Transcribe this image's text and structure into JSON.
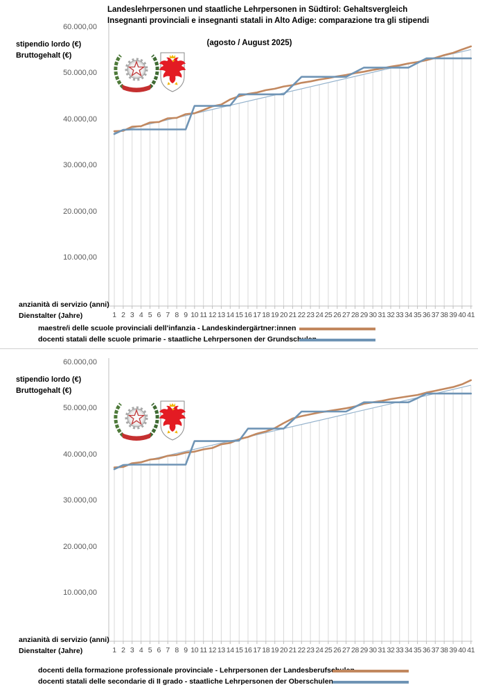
{
  "title": {
    "line1": "Landeslehrpersonen und staatliche Lehrpersonen in Südtirol: Gehaltsvergleich",
    "line2": "Insegnanti provinciali e insegnanti statali in Alto Adige: comparazione tra gli stipendi",
    "line3": "(agosto / August 2025)"
  },
  "emblems": [
    {
      "name": "italy-emblem",
      "description": "Emblem of the Italian Republic"
    },
    {
      "name": "south-tyrol-emblem",
      "description": "Coat of arms of South Tyrol (red eagle)"
    }
  ],
  "colors": {
    "provincial_line": "#c2885f",
    "state_line": "#6f94b5",
    "trend_line": "#94b2cc",
    "dropline": "#d9d9d9",
    "axis": "#bfbfbf"
  },
  "charts": [
    {
      "y_axis_title": [
        "stipendio lordo (€)",
        "Bruttogehalt (€)"
      ],
      "x_axis_title": [
        "anzianità di servizio (anni)",
        "Dienstalter (Jahre)"
      ],
      "legend": [
        {
          "label": "maestre/i delle scuole provinciali dell'infanzia - Landeskindergärtner:innen",
          "color": "#c2885f"
        },
        {
          "label": "docenti statali delle scuole primarie - staatliche Lehrpersonen der Grundschulen",
          "color": "#6f94b5"
        }
      ],
      "chart_data": {
        "type": "line",
        "ylim": [
          0,
          60000
        ],
        "yticks": [
          {
            "value": 60000,
            "label": "60.000,00"
          },
          {
            "value": 50000,
            "label": "50.000,00"
          },
          {
            "value": 40000,
            "label": "40.000,00"
          },
          {
            "value": 30000,
            "label": "30.000,00"
          },
          {
            "value": 20000,
            "label": "20.000,00"
          },
          {
            "value": 10000,
            "label": "10.000,00"
          }
        ],
        "x": [
          "1",
          "2",
          "3",
          "4",
          "5",
          "6",
          "7",
          "8",
          "9",
          "10",
          "11",
          "12",
          "13",
          "14",
          "15",
          "16",
          "17",
          "18",
          "19",
          "20",
          "21",
          "22",
          "23",
          "24",
          "25",
          "26",
          "27",
          "28",
          "29",
          "30",
          "31",
          "32",
          "33",
          "34",
          "35",
          "36",
          "37",
          "38",
          "39",
          "40",
          "41"
        ],
        "dropline_color": "#d9d9d9",
        "axis_color": "#bfbfbf",
        "series": [
          {
            "name": "maestre/i delle scuole provinciali dell'infanzia - Landeskindergärtner:innen",
            "color": "#c2885f",
            "style": "thick",
            "values": [
              37500,
              37600,
              38500,
              38600,
              39400,
              39500,
              40300,
              40400,
              41200,
              41400,
              42100,
              42900,
              43300,
              44400,
              45100,
              45600,
              45900,
              46400,
              46700,
              47200,
              47500,
              48000,
              48300,
              48700,
              49000,
              49400,
              49700,
              50100,
              50400,
              50800,
              51100,
              51500,
              51800,
              52200,
              52500,
              52900,
              53400,
              54000,
              54500,
              55200,
              55900
            ]
          },
          {
            "name": "docenti statali delle scuole primarie - staatliche Lehrpersonen der Grundschulen",
            "color": "#6f94b5",
            "style": "thick",
            "values": [
              36900,
              37800,
              37900,
              37900,
              37900,
              37900,
              37900,
              37900,
              37900,
              43000,
              43000,
              43000,
              43000,
              43100,
              45500,
              45500,
              45500,
              45500,
              45500,
              45500,
              47400,
              49300,
              49300,
              49300,
              49300,
              49300,
              49300,
              50300,
              51300,
              51300,
              51300,
              51300,
              51300,
              51300,
              52300,
              53300,
              53300,
              53300,
              53300,
              53300,
              53300
            ]
          },
          {
            "name": "trend-line",
            "color": "#94b2cc",
            "style": "thin",
            "values_linear": {
              "start": 37300,
              "end": 55200
            }
          }
        ]
      }
    },
    {
      "y_axis_title": [
        "stipendio lordo (€)",
        "Bruttogehalt (€)"
      ],
      "x_axis_title": [
        "anzianità di servizio (anni)",
        "Dienstalter (Jahre)"
      ],
      "legend": [
        {
          "label": "docenti della formazione professionale provinciale - Lehrpersonen der Landesberufschulen",
          "color": "#c2885f"
        },
        {
          "label": "docenti statali delle secondarie di II grado - staatliche Lehrpersonen der Oberschulen",
          "color": "#6f94b5"
        }
      ],
      "chart_data": {
        "type": "line",
        "ylim": [
          0,
          60000
        ],
        "yticks": [
          {
            "value": 60000,
            "label": "60.000,00"
          },
          {
            "value": 50000,
            "label": "50.000,00"
          },
          {
            "value": 40000,
            "label": "40.000,00"
          },
          {
            "value": 30000,
            "label": "30.000,00"
          },
          {
            "value": 20000,
            "label": "20.000,00"
          },
          {
            "value": 10000,
            "label": "10.000,00"
          }
        ],
        "x": [
          "1",
          "2",
          "3",
          "4",
          "5",
          "6",
          "7",
          "8",
          "9",
          "10",
          "11",
          "12",
          "13",
          "14",
          "15",
          "16",
          "17",
          "18",
          "19",
          "20",
          "21",
          "22",
          "23",
          "24",
          "25",
          "26",
          "27",
          "28",
          "29",
          "30",
          "31",
          "32",
          "33",
          "34",
          "35",
          "36",
          "37",
          "38",
          "39",
          "40",
          "41"
        ],
        "dropline_color": "#d9d9d9",
        "axis_color": "#bfbfbf",
        "series": [
          {
            "name": "docenti della formazione professionale provinciale - Lehrpersonen der Landesberufschulen",
            "color": "#c2885f",
            "style": "thick",
            "values": [
              37300,
              37400,
              38200,
              38400,
              39000,
              39200,
              39800,
              40000,
              40500,
              40700,
              41200,
              41500,
              42300,
              42600,
              43400,
              43900,
              44600,
              45100,
              45800,
              46900,
              47900,
              48400,
              48800,
              49200,
              49500,
              49800,
              50100,
              50500,
              51100,
              51400,
              51700,
              52100,
              52400,
              52700,
              53000,
              53500,
              53900,
              54300,
              54700,
              55300,
              56200
            ]
          },
          {
            "name": "docenti statali delle secondarie di II grado - staatliche Lehrpersonen der Oberschulen",
            "color": "#6f94b5",
            "style": "thick",
            "values": [
              36900,
              37800,
              37900,
              37900,
              37900,
              37900,
              37900,
              37900,
              37900,
              43000,
              43000,
              43000,
              43000,
              43000,
              43100,
              45700,
              45700,
              45700,
              45700,
              45700,
              47500,
              49400,
              49400,
              49400,
              49400,
              49400,
              49400,
              50400,
              51400,
              51400,
              51400,
              51400,
              51400,
              51400,
              52300,
              53300,
              53300,
              53300,
              53300,
              53300,
              53300
            ]
          },
          {
            "name": "trend-line",
            "color": "#94b2cc",
            "style": "thin",
            "values_linear": {
              "start": 37200,
              "end": 55100
            }
          }
        ]
      }
    }
  ]
}
